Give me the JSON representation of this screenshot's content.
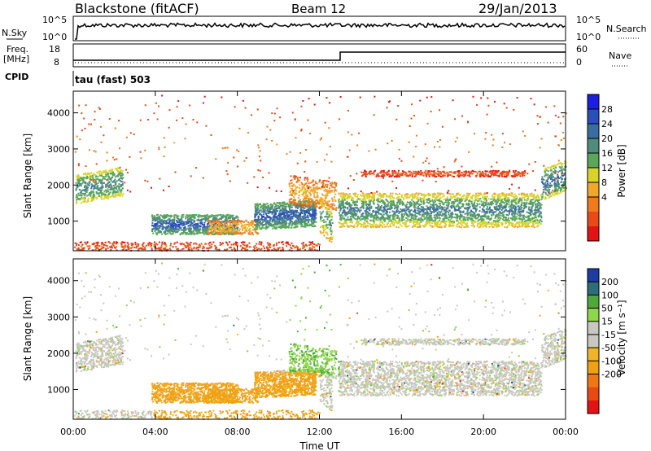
{
  "header": {
    "station": "Blackstone (fitACF)",
    "beam": "Beam 12",
    "date": "29/Jan/2013"
  },
  "top_panels": {
    "nsky_label": "N.Sky",
    "nsky_ticks": [
      "10^5",
      "10^0"
    ],
    "nsearch_label": "N.Search",
    "nsearch_ticks": [
      "10^5",
      "10^0"
    ],
    "freq_label": "Freq.",
    "freq_unit": "[MHz]",
    "freq_ticks": [
      "18",
      "8"
    ],
    "nave_label": "Nave",
    "nave_ticks": [
      "60",
      "0"
    ],
    "cpid_label": "CPID",
    "cpid_value": "tau (fast) 503"
  },
  "chart_data": [
    {
      "type": "heatmap",
      "name": "power-panel",
      "ylabel": "Slant Range [km]",
      "yticks": [
        "4000",
        "3000",
        "2000",
        "1000"
      ],
      "ylim": [
        180,
        4600
      ],
      "xlim": [
        0,
        24
      ],
      "colorbar": {
        "label": "Power [dB]",
        "ticks": [
          "28",
          "24",
          "20",
          "16",
          "12",
          "8",
          "4"
        ],
        "colors": [
          "#1e1ee0",
          "#2a4fb8",
          "#3b6ea0",
          "#4f8c7c",
          "#5aa65a",
          "#d8d32a",
          "#f0a82a",
          "#f07a1e",
          "#e84a18",
          "#e01414"
        ]
      }
    },
    {
      "type": "heatmap",
      "name": "velocity-panel",
      "ylabel": "Slant Range [km]",
      "yticks": [
        "4000",
        "3000",
        "2000",
        "1000"
      ],
      "ylim": [
        180,
        4600
      ],
      "xlim": [
        0,
        24
      ],
      "xlabel": "Time UT",
      "xticks": [
        "00:00",
        "04:00",
        "08:00",
        "12:00",
        "16:00",
        "20:00",
        "00:00"
      ],
      "colorbar": {
        "label": "Velocity [m s⁻¹]",
        "ticks": [
          "200",
          "100",
          "50",
          "15",
          "-15",
          "-50",
          "-100",
          "-200"
        ],
        "colors": [
          "#1e3ca0",
          "#2e6e78",
          "#4ea83a",
          "#8ed64a",
          "#c8c8c0",
          "#c8c8c0",
          "#f0b428",
          "#f0a014",
          "#f07814",
          "#e84a14",
          "#e01414"
        ]
      }
    }
  ]
}
